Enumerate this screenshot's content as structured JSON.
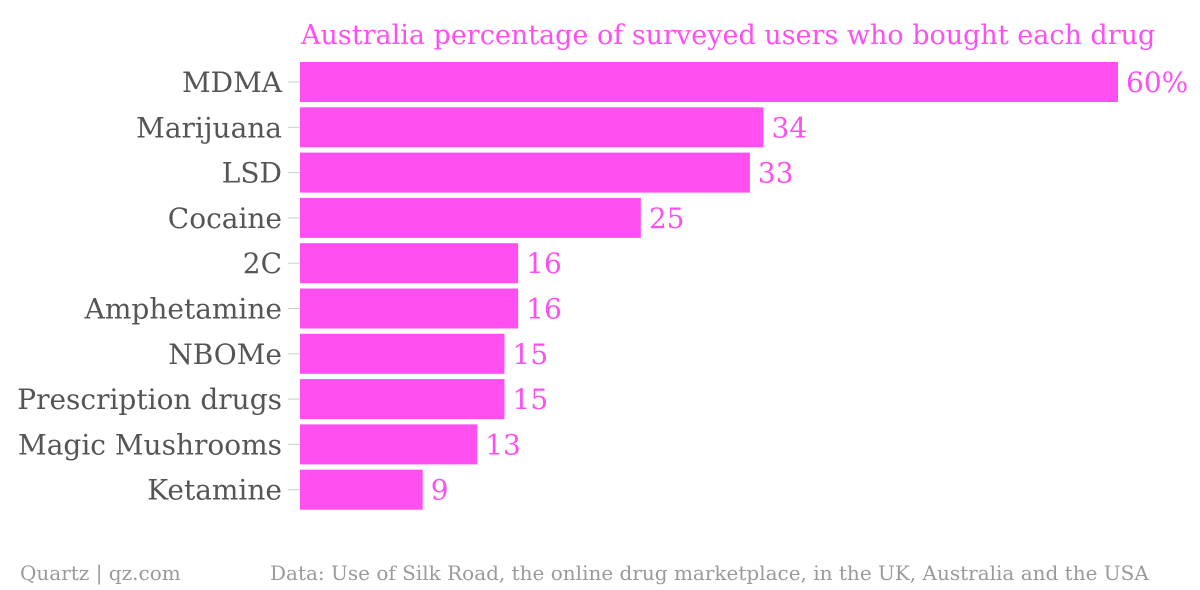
{
  "chart_data": {
    "type": "bar",
    "orientation": "horizontal",
    "title": "Australia percentage of surveyed users who bought each drug",
    "categories": [
      "MDMA",
      "Marijuana",
      "LSD",
      "Cocaine",
      "2C",
      "Amphetamine",
      "NBOMe",
      "Prescription drugs",
      "Magic Mushrooms",
      "Ketamine"
    ],
    "values": [
      60,
      34,
      33,
      25,
      16,
      16,
      15,
      15,
      13,
      9
    ],
    "value_labels": [
      "60%",
      "34",
      "33",
      "25",
      "16",
      "16",
      "15",
      "15",
      "13",
      "9"
    ],
    "xlim": [
      0,
      60
    ],
    "grid": false,
    "legend": "none",
    "colors": {
      "bar": "#ff4ff0",
      "value_label": "#ff4ff0",
      "title": "#ff4ff0",
      "category_label": "#555555",
      "tick": "#cccccc"
    }
  },
  "footer": {
    "source_left": "Quartz | qz.com",
    "source_right": "Data: Use of Silk Road, the online drug marketplace, in the UK, Australia and the USA"
  }
}
